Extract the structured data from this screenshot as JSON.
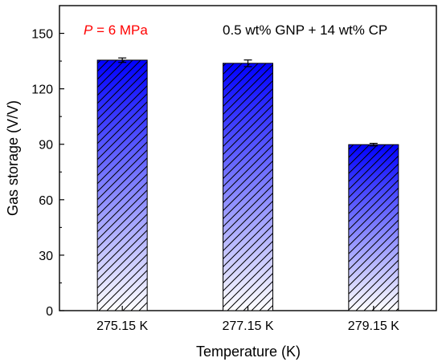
{
  "chart_data": {
    "type": "bar",
    "categories": [
      "275.15 K",
      "277.15 K",
      "279.15 K"
    ],
    "values": [
      135.5,
      133.8,
      89.8
    ],
    "errors": [
      1.2,
      1.8,
      0.7
    ],
    "xlabel": "Temperature (K)",
    "ylabel": "Gas storage (V/V)",
    "ylim": [
      0,
      165
    ],
    "yticks": [
      0,
      30,
      60,
      90,
      120,
      150
    ],
    "grid": false,
    "bar_fill": "gradient blue (#0000ff) at top to white at bottom with diagonal hatching",
    "colors": {
      "bar_top": "#0000ff",
      "bar_bottom": "#ffffff",
      "hatch": "#000000",
      "annotation_pressure": "#ff0000"
    },
    "annotations": {
      "pressure_symbol": "P",
      "pressure_value": " = 6 MPa",
      "composition": "0.5 wt% GNP + 14 wt% CP"
    }
  }
}
